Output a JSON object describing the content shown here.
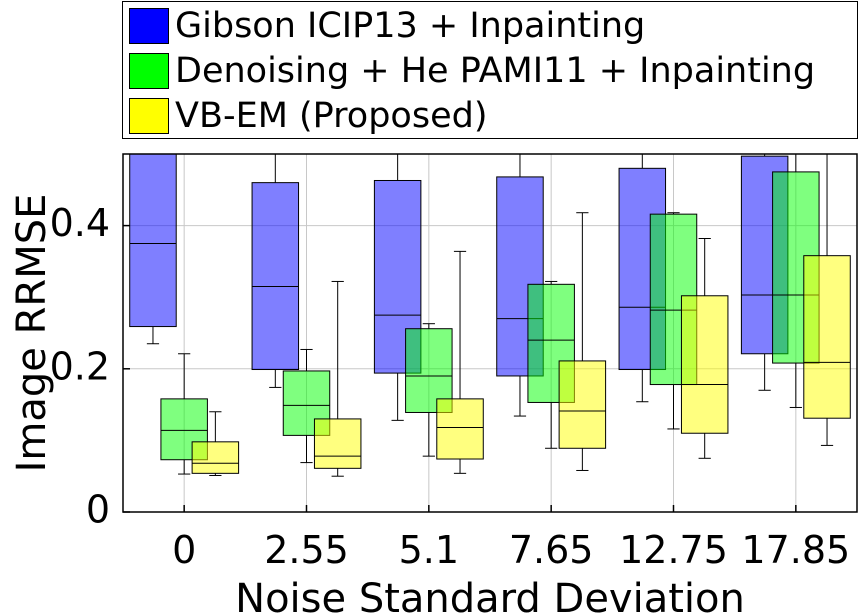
{
  "chart_data": {
    "type": "box",
    "xlabel": "Noise Standard Deviation",
    "ylabel": "Image RRMSE",
    "categories": [
      "0",
      "2.55",
      "5.1",
      "7.65",
      "12.75",
      "17.85"
    ],
    "ylim": [
      0,
      0.5
    ],
    "yticks": [
      0,
      0.2,
      0.4
    ],
    "ytick_labels": [
      "0",
      "0.2",
      "0.4"
    ],
    "grid": true,
    "legend_position": "top",
    "series": [
      {
        "name": "Gibson ICIP13 + Inpainting",
        "color": "#0000ff",
        "boxes": [
          {
            "whisker_low": 0.235,
            "q1": 0.259,
            "median": 0.375,
            "q3": 0.5,
            "whisker_high": 0.5
          },
          {
            "whisker_low": 0.174,
            "q1": 0.199,
            "median": 0.315,
            "q3": 0.46,
            "whisker_high": 0.5
          },
          {
            "whisker_low": 0.128,
            "q1": 0.194,
            "median": 0.275,
            "q3": 0.463,
            "whisker_high": 0.5
          },
          {
            "whisker_low": 0.134,
            "q1": 0.19,
            "median": 0.27,
            "q3": 0.468,
            "whisker_high": 0.5
          },
          {
            "whisker_low": 0.154,
            "q1": 0.199,
            "median": 0.286,
            "q3": 0.48,
            "whisker_high": 0.5
          },
          {
            "whisker_low": 0.17,
            "q1": 0.221,
            "median": 0.303,
            "q3": 0.497,
            "whisker_high": 0.5
          }
        ]
      },
      {
        "name": "Denoising + He PAMI11 + Inpainting",
        "color": "#00ff00",
        "boxes": [
          {
            "whisker_low": 0.053,
            "q1": 0.073,
            "median": 0.114,
            "q3": 0.158,
            "whisker_high": 0.221
          },
          {
            "whisker_low": 0.069,
            "q1": 0.107,
            "median": 0.149,
            "q3": 0.197,
            "whisker_high": 0.227
          },
          {
            "whisker_low": 0.078,
            "q1": 0.139,
            "median": 0.19,
            "q3": 0.256,
            "whisker_high": 0.263
          },
          {
            "whisker_low": 0.089,
            "q1": 0.153,
            "median": 0.24,
            "q3": 0.318,
            "whisker_high": 0.322
          },
          {
            "whisker_low": 0.116,
            "q1": 0.178,
            "median": 0.282,
            "q3": 0.416,
            "whisker_high": 0.418
          },
          {
            "whisker_low": 0.146,
            "q1": 0.208,
            "median": 0.303,
            "q3": 0.475,
            "whisker_high": 0.5
          }
        ]
      },
      {
        "name": "VB-EM (Proposed)",
        "color": "#ffff00",
        "boxes": [
          {
            "whisker_low": 0.051,
            "q1": 0.054,
            "median": 0.068,
            "q3": 0.098,
            "whisker_high": 0.14
          },
          {
            "whisker_low": 0.05,
            "q1": 0.061,
            "median": 0.078,
            "q3": 0.13,
            "whisker_high": 0.322
          },
          {
            "whisker_low": 0.054,
            "q1": 0.074,
            "median": 0.118,
            "q3": 0.158,
            "whisker_high": 0.364
          },
          {
            "whisker_low": 0.058,
            "q1": 0.089,
            "median": 0.141,
            "q3": 0.211,
            "whisker_high": 0.418
          },
          {
            "whisker_low": 0.075,
            "q1": 0.11,
            "median": 0.178,
            "q3": 0.302,
            "whisker_high": 0.382
          },
          {
            "whisker_low": 0.093,
            "q1": 0.131,
            "median": 0.209,
            "q3": 0.358,
            "whisker_high": 0.5
          }
        ]
      }
    ]
  }
}
